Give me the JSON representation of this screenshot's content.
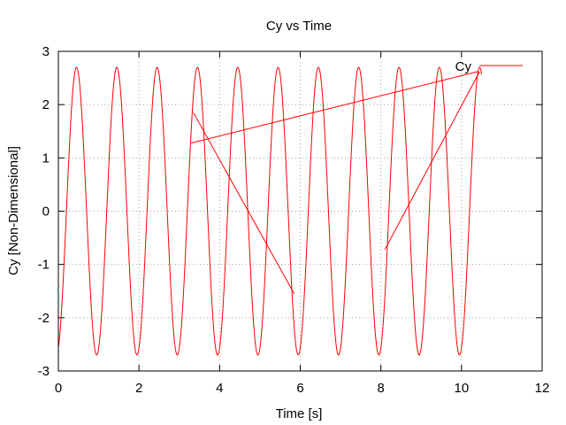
{
  "chart_data": {
    "type": "line",
    "title": "Cy vs Time",
    "xlabel": "Time [s]",
    "ylabel": "Cy [Non-Dimensional]",
    "xlim": [
      0,
      12
    ],
    "ylim": [
      -3,
      3
    ],
    "xticks": [
      0,
      2,
      4,
      6,
      8,
      10,
      12
    ],
    "yticks": [
      -3,
      -2,
      -1,
      0,
      1,
      2,
      3
    ],
    "xtick_labels": [
      "0",
      "2",
      "4",
      "6",
      "8",
      "10",
      "12"
    ],
    "ytick_labels": [
      "-3",
      "-2",
      "-1",
      "0",
      "1",
      "2",
      "3"
    ],
    "grid": true,
    "legend_position": "top-right",
    "series": [
      {
        "name": "Cy",
        "color": "#ff0000",
        "segments": [
          {
            "mode": "oscillation",
            "amplitude": 2.7,
            "period": 1.0,
            "phase_peak_time": 0.45,
            "t_start": 0.0,
            "t_end": 10.5,
            "note_values": "sinusoidal oscillation between approximately -2.7 and 2.7"
          }
        ],
        "jump_lines": [
          {
            "x": [
              3.3,
              10.4
            ],
            "y": [
              1.28,
              2.62
            ]
          },
          {
            "x": [
              3.35,
              5.85
            ],
            "y": [
              1.85,
              -1.55
            ]
          },
          {
            "x": [
              8.1,
              10.45
            ],
            "y": [
              -0.72,
              2.62
            ]
          }
        ]
      }
    ]
  }
}
